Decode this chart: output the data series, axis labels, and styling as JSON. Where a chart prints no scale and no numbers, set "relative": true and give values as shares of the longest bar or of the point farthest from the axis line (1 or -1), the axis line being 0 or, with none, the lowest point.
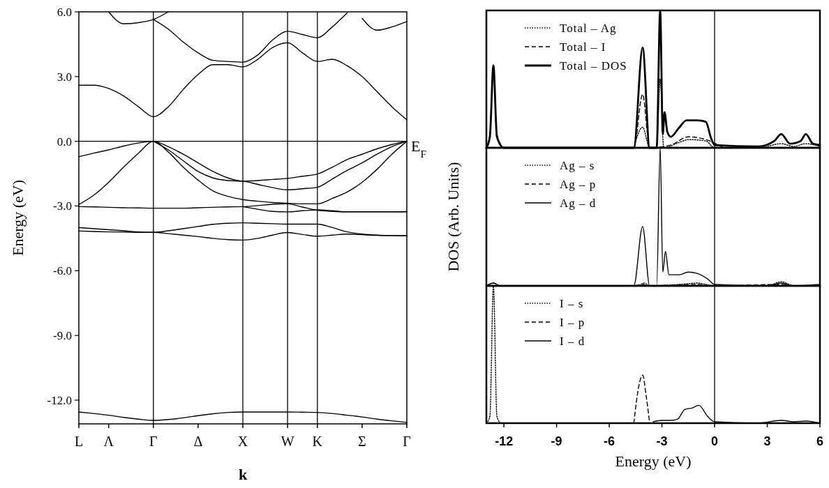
{
  "chart_data": [
    {
      "type": "line",
      "xlabel": "k",
      "ylabel": "Energy (eV)",
      "ylim": [
        -13.1,
        6
      ],
      "categories": [
        "L",
        null,
        "Λ",
        null,
        null,
        "Γ",
        null,
        null,
        "Δ",
        null,
        null,
        "X",
        null,
        null,
        "W",
        null,
        "K",
        null,
        null,
        "Σ",
        null,
        null,
        "Γ"
      ],
      "yticks": [
        {
          "value": 6,
          "label": "6.0"
        },
        {
          "value": 3,
          "label": "3.0"
        },
        {
          "value": 0,
          "label": "0.0"
        },
        {
          "value": -3,
          "label": "-3.0"
        },
        {
          "value": -6,
          "label": "-6.0"
        },
        {
          "value": -9,
          "label": "-9.0"
        },
        {
          "value": -12,
          "label": "-12.0"
        }
      ],
      "ref_lines": [
        {
          "axis": "y",
          "value": 0,
          "color": "#000000"
        },
        {
          "axis": "x",
          "value": "Γ",
          "color": "#000000"
        },
        {
          "axis": "x",
          "value": "X",
          "color": "#000000"
        },
        {
          "axis": "x",
          "value": "W",
          "color": "#000000"
        },
        {
          "axis": "x",
          "value": "K",
          "color": "#000000"
        }
      ],
      "annotations": [
        "E$_{F}$"
      ],
      "series": [
        {
          "color": "#000000",
          "values": [
            2.6,
            2.6,
            2.45,
            2.1,
            1.6,
            1.14,
            1.6,
            2.4,
            3.1,
            3.55,
            3.55,
            3.45,
            3.8,
            4.35,
            4.57,
            4.1,
            3.7,
            3.8,
            3.5,
            3.0,
            2.3,
            1.6,
            1.0
          ]
        },
        {
          "color": "#000000",
          "values": [
            null,
            null,
            null,
            null,
            null,
            5.65,
            5.2,
            4.6,
            4.1,
            3.75,
            3.7,
            3.67,
            4.0,
            4.7,
            5.1,
            4.95,
            4.8,
            5.3,
            5.95,
            null,
            null,
            null,
            null
          ]
        },
        {
          "color": "#000000",
          "values": [
            null,
            null,
            6.0,
            5.45,
            5.5,
            5.65,
            6.0,
            null,
            null,
            null,
            null,
            null,
            null,
            null,
            null,
            null,
            null,
            null,
            null,
            null,
            null,
            null,
            null
          ]
        },
        {
          "color": "#000000",
          "values": [
            null,
            null,
            null,
            null,
            null,
            null,
            null,
            null,
            null,
            null,
            null,
            null,
            null,
            null,
            null,
            null,
            null,
            null,
            null,
            5.7,
            5.15,
            5.3,
            5.55
          ]
        },
        {
          "color": "#000000",
          "values": [
            -0.72,
            -0.55,
            -0.4,
            -0.22,
            -0.08,
            0,
            -0.25,
            -0.6,
            -1.0,
            -1.4,
            -1.7,
            -1.85,
            -1.82,
            -1.77,
            -1.72,
            -1.62,
            -1.52,
            -1.2,
            -0.85,
            -0.6,
            -0.35,
            -0.15,
            0
          ]
        },
        {
          "color": "#000000",
          "values": [
            null,
            null,
            null,
            null,
            null,
            0,
            -0.4,
            -0.9,
            -1.4,
            -1.7,
            -1.82,
            -1.85,
            -2.0,
            -2.15,
            -2.25,
            -2.2,
            -2.13,
            -1.75,
            -1.35,
            -1.0,
            -0.6,
            -0.25,
            0
          ]
        },
        {
          "color": "#000000",
          "values": [
            -2.93,
            -2.5,
            -1.9,
            -1.2,
            -0.55,
            0,
            -0.5,
            -1.2,
            -1.8,
            -2.3,
            -2.55,
            -2.7,
            -2.78,
            -2.84,
            -2.87,
            -2.9,
            -2.9,
            -2.65,
            -2.35,
            -1.9,
            -1.3,
            -0.6,
            0
          ]
        },
        {
          "color": "#000000",
          "values": [
            -3.03,
            -3.04,
            -3.06,
            -3.08,
            -3.09,
            -3.1,
            -3.1,
            -3.1,
            -3.08,
            -3.06,
            -3.04,
            -3.03,
            -2.98,
            -2.92,
            -2.9,
            -3.05,
            -3.2,
            -3.25,
            -3.27,
            -3.27,
            -3.27,
            -3.27,
            -3.27
          ]
        },
        {
          "color": "#000000",
          "values": [
            null,
            null,
            null,
            null,
            null,
            null,
            null,
            null,
            null,
            null,
            null,
            -3.03,
            -3.15,
            -3.25,
            -3.27,
            -3.22,
            -3.18,
            -3.22,
            -3.27,
            -3.27,
            -3.27,
            -3.27,
            -3.26
          ]
        },
        {
          "color": "#000000",
          "values": [
            -4.0,
            -4.05,
            -4.1,
            -4.15,
            -4.2,
            -4.22,
            -4.15,
            -4.05,
            -3.95,
            -3.85,
            -3.8,
            -3.78,
            -3.8,
            -3.82,
            -3.84,
            -3.84,
            -3.84,
            -4.0,
            -4.2,
            -4.3,
            -4.35,
            -4.37,
            -4.38
          ]
        },
        {
          "color": "#000000",
          "values": [
            -4.16,
            -4.18,
            -4.2,
            -4.21,
            -4.22,
            -4.22,
            -4.28,
            -4.35,
            -4.42,
            -4.5,
            -4.56,
            -4.58,
            -4.5,
            -4.35,
            -4.23,
            -4.32,
            -4.4,
            -4.35,
            -4.3,
            -4.33,
            -4.36,
            -4.37,
            -4.38
          ]
        },
        {
          "color": "#000000",
          "values": [
            -12.55,
            -12.62,
            -12.7,
            -12.8,
            -12.88,
            -12.94,
            -12.9,
            -12.82,
            -12.72,
            -12.63,
            -12.57,
            -12.55,
            -12.55,
            -12.55,
            -12.55,
            -12.56,
            -12.57,
            -12.62,
            -12.7,
            -12.78,
            -12.88,
            -12.96,
            -13.03
          ]
        }
      ]
    },
    {
      "type": "line",
      "relative": true,
      "xlim": [
        -13,
        6
      ],
      "tick_labels": false,
      "legend": "top left",
      "ref_lines": [
        {
          "axis": "x",
          "value": 0,
          "color": "#000000"
        }
      ],
      "series": [
        {
          "name": "Total – Ag",
          "color": "#000000",
          "line_style": "dotted",
          "x": [
            -4.6,
            -4.1,
            -3.7,
            -3.3,
            -3.1,
            -2.9,
            -2.0,
            -1.5,
            -0.5,
            0,
            2.5,
            3.8,
            4.5,
            5.2,
            6
          ],
          "values": [
            0,
            0.15,
            0,
            0,
            0.5,
            0,
            0.04,
            0.06,
            0.05,
            0,
            0,
            0.03,
            0.01,
            0.03,
            0.01
          ]
        },
        {
          "name": "Total – I",
          "color": "#000000",
          "line_style": "dashed",
          "x": [
            -13,
            -12.8,
            -12.6,
            -12.4,
            -12,
            -4.6,
            -4.1,
            -3.7,
            -2.5,
            -1.5,
            -0.5,
            0.5
          ],
          "values": [
            0,
            0.1,
            0.58,
            0.1,
            0,
            0,
            0.39,
            0,
            0.02,
            0.08,
            0.06,
            0
          ]
        },
        {
          "name": "Total – DOS",
          "color": "#000000",
          "line_style": "solid",
          "x": [
            -13,
            -12.8,
            -12.6,
            -12.4,
            -12,
            -4.6,
            -4.1,
            -3.7,
            -3.3,
            -3.1,
            -2.95,
            -2.85,
            -2.7,
            -2.5,
            -2.0,
            -1.6,
            -1.0,
            -0.5,
            -0.2,
            0,
            2.5,
            3.4,
            3.8,
            4.3,
            4.9,
            5.2,
            5.6,
            6
          ],
          "values": [
            0,
            0.08,
            0.6,
            0.08,
            0,
            0,
            0.73,
            0,
            0,
            1.0,
            0.1,
            0.26,
            0.12,
            0.08,
            0.15,
            0.2,
            0.2,
            0.19,
            0.07,
            0.02,
            0.01,
            0.05,
            0.1,
            0.03,
            0.05,
            0.1,
            0.03,
            0.02
          ]
        }
      ]
    },
    {
      "type": "line",
      "relative": true,
      "xlim": [
        -13,
        6
      ],
      "tick_labels": false,
      "legend": "top left",
      "ylabel": "DOS (Arb. Units)",
      "ref_lines": [
        {
          "axis": "x",
          "value": 0,
          "color": "#000000"
        }
      ],
      "series": [
        {
          "name": "Ag – s",
          "color": "#000000",
          "line_style": "dotted",
          "x": [
            -13,
            -12.6,
            -12.2,
            -4.4,
            -4.0,
            -3.7,
            -2.0,
            -1.0,
            0,
            3,
            3.8,
            4.5,
            6
          ],
          "values": [
            0,
            0.02,
            0,
            0,
            0.02,
            0,
            0.01,
            0.02,
            0,
            0,
            0.03,
            0,
            0
          ]
        },
        {
          "name": "Ag – p",
          "color": "#000000",
          "line_style": "dashed",
          "x": [
            -4.5,
            -4.1,
            -3.8,
            -1.0,
            0,
            3.8,
            4.5
          ],
          "values": [
            0,
            0.01,
            0,
            0.01,
            0,
            0.01,
            0
          ]
        },
        {
          "name": "Ag – d",
          "color": "#000000",
          "line_style": "solid",
          "x": [
            -13,
            -12.6,
            -12.2,
            -4.6,
            -4.1,
            -3.7,
            -3.3,
            -3.1,
            -2.95,
            -2.8,
            -2.6,
            -2.0,
            -1.5,
            -1.0,
            -0.4,
            0,
            3,
            3.8,
            4.5,
            6
          ],
          "values": [
            0,
            0.02,
            0,
            0,
            0.43,
            0,
            0,
            1.0,
            0.1,
            0.25,
            0.08,
            0.08,
            0.1,
            0.09,
            0.05,
            0.01,
            0,
            0.02,
            0,
            0.01
          ]
        }
      ]
    },
    {
      "type": "line",
      "relative": true,
      "xlim": [
        -13,
        6
      ],
      "xticks": [
        -12,
        -9,
        -6,
        -3,
        0,
        3,
        6
      ],
      "tick_labels": "x",
      "legend": "top left",
      "xlabel": "Energy (eV)",
      "ref_lines": [
        {
          "axis": "x",
          "value": 0,
          "color": "#000000"
        }
      ],
      "series": [
        {
          "name": "I – s",
          "color": "#000000",
          "line_style": "dotted",
          "x": [
            -13,
            -12.8,
            -12.6,
            -12.4,
            -12.2
          ],
          "values": [
            0,
            0.05,
            1.0,
            0.05,
            0
          ]
        },
        {
          "name": "I – p",
          "color": "#000000",
          "line_style": "dashed",
          "x": [
            -4.6,
            -4.3,
            -4.1,
            -3.9,
            -3.7
          ],
          "values": [
            0,
            0.28,
            0.35,
            0.2,
            0
          ]
        },
        {
          "name": "I – d",
          "color": "#000000",
          "line_style": "solid",
          "x": [
            -3.5,
            -3.0,
            -2.5,
            -2.1,
            -1.7,
            -1.3,
            -0.9,
            -0.4,
            0,
            2.5,
            3.8,
            4.5,
            5.2,
            6
          ],
          "values": [
            0.01,
            0.02,
            0.02,
            0.03,
            0.1,
            0.11,
            0.13,
            0.05,
            0.01,
            0,
            0.02,
            0.01,
            0.015,
            0
          ]
        }
      ]
    }
  ]
}
